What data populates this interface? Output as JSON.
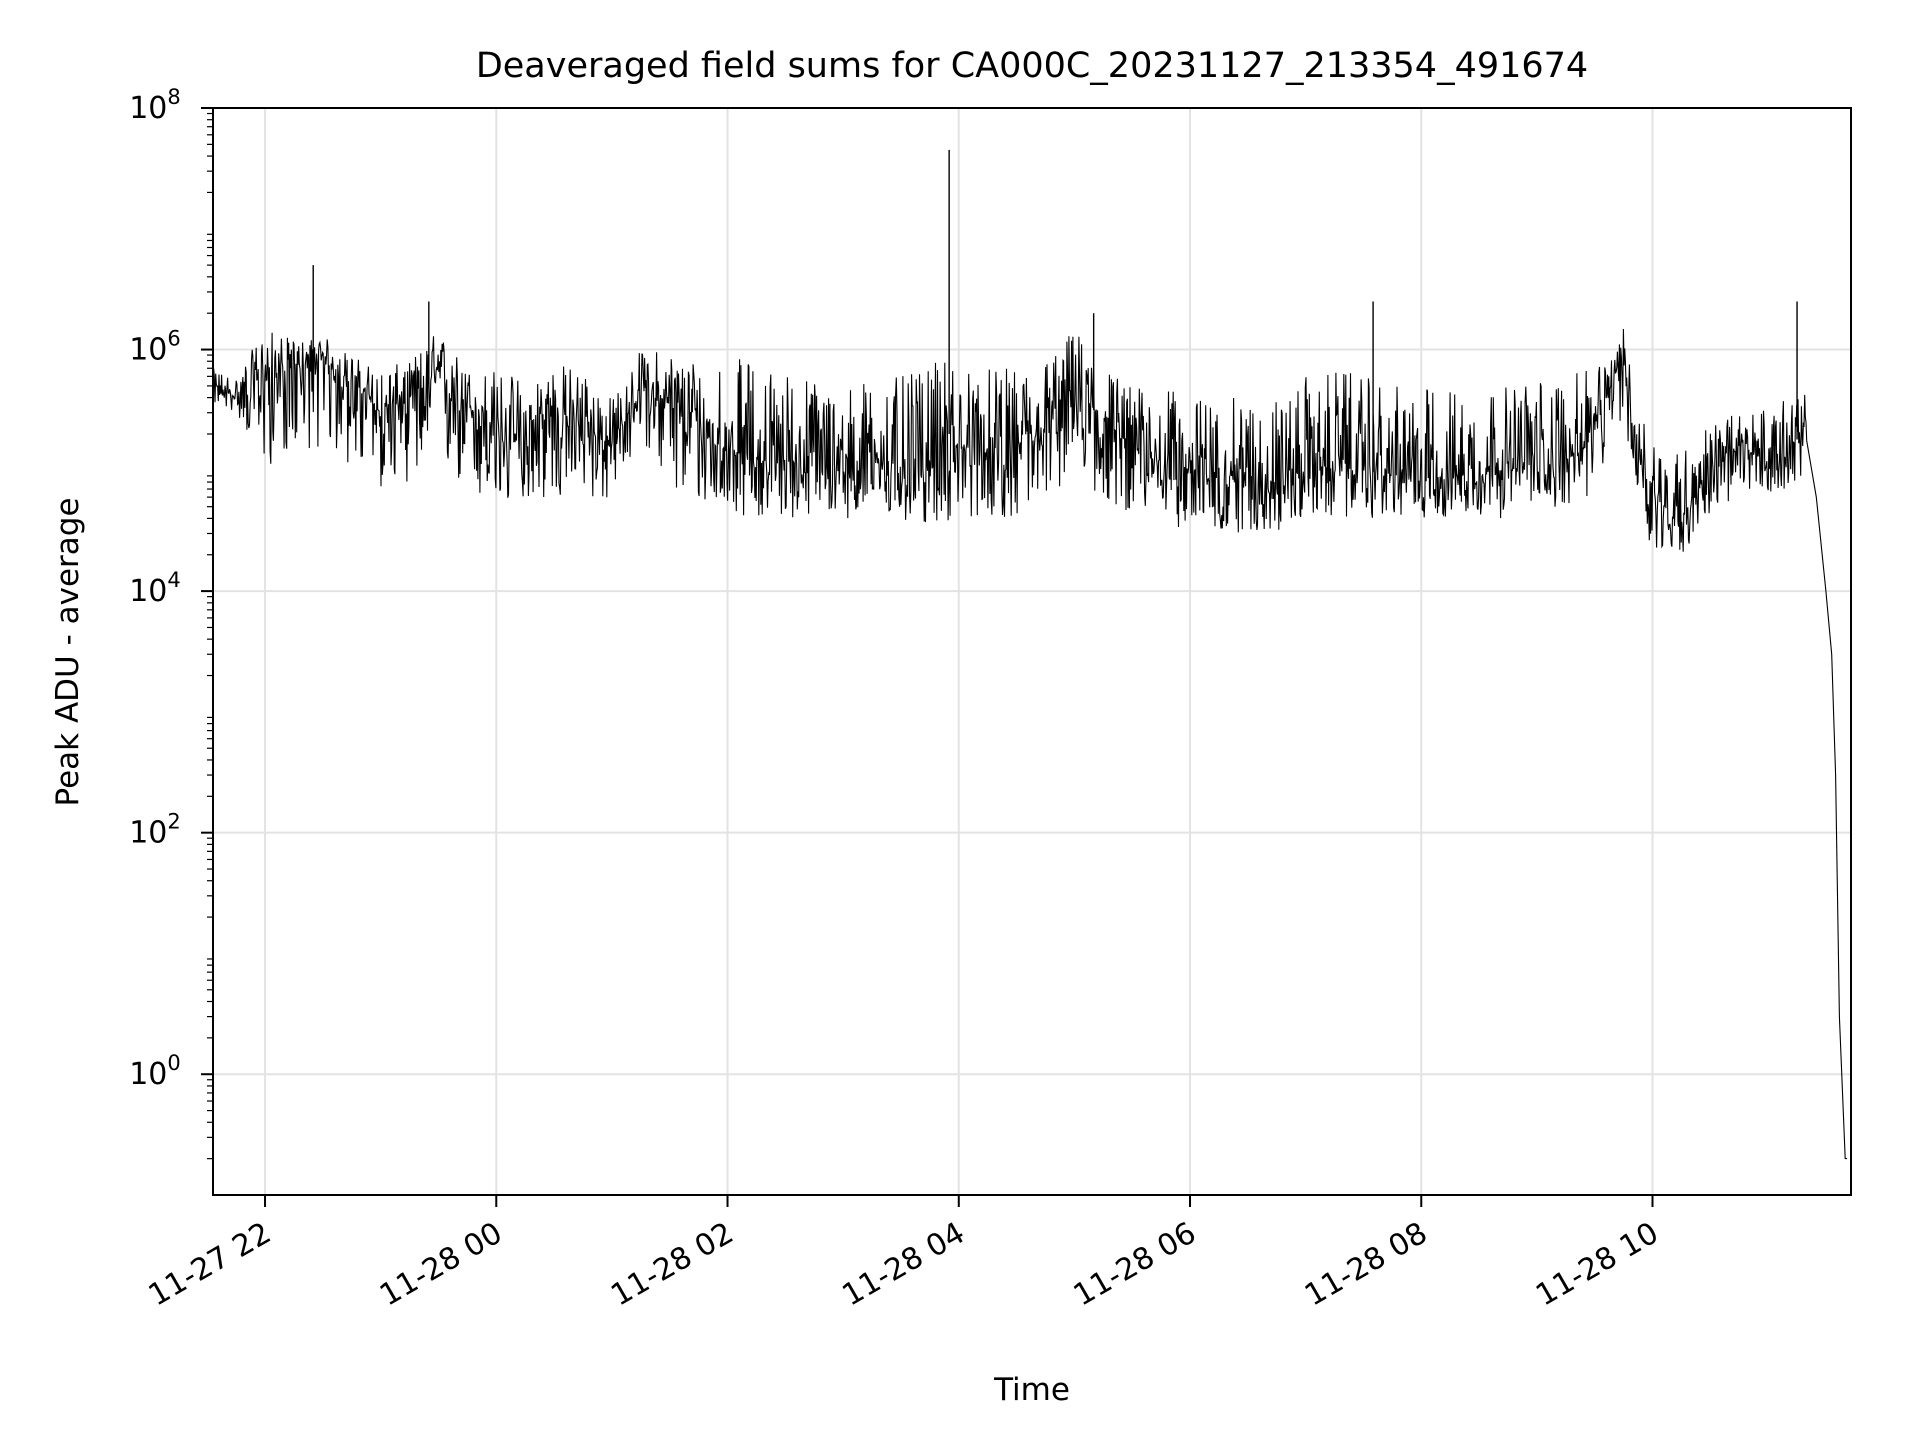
{
  "chart_data": {
    "type": "line",
    "title": "Deaveraged field sums for CA000C_20231127_213354_491674",
    "xlabel": "Time",
    "ylabel": "Peak ADU - average",
    "yscale": "log",
    "ylim": [
      0.1,
      100000000
    ],
    "xlim": [
      "2023-11-27 21:33",
      "2023-11-28 11:43"
    ],
    "grid": true,
    "legend": "none",
    "line_color": "#000000",
    "x_ticks": [
      {
        "t": "2023-11-27 22:00",
        "label": "11-27 22"
      },
      {
        "t": "2023-11-28 00:00",
        "label": "11-28 00"
      },
      {
        "t": "2023-11-28 02:00",
        "label": "11-28 02"
      },
      {
        "t": "2023-11-28 04:00",
        "label": "11-28 04"
      },
      {
        "t": "2023-11-28 06:00",
        "label": "11-28 06"
      },
      {
        "t": "2023-11-28 08:00",
        "label": "11-28 08"
      },
      {
        "t": "2023-11-28 10:00",
        "label": "11-28 10"
      }
    ],
    "y_ticks": [
      {
        "value": 1,
        "base": "10",
        "exp": "0"
      },
      {
        "value": 100,
        "base": "10",
        "exp": "2"
      },
      {
        "value": 10000,
        "base": "10",
        "exp": "4"
      },
      {
        "value": 1000000,
        "base": "10",
        "exp": "6"
      },
      {
        "value": 100000000,
        "base": "10",
        "exp": "8"
      }
    ],
    "series": [
      {
        "x": [
          "2023-11-27 21:33",
          "2023-11-27 21:45",
          "2023-11-27 22:00",
          "2023-11-27 22:15",
          "2023-11-27 22:30",
          "2023-11-27 22:45",
          "2023-11-27 23:00",
          "2023-11-27 23:15",
          "2023-11-27 23:30",
          "2023-11-27 23:45",
          "2023-11-28 00:00",
          "2023-11-28 00:15",
          "2023-11-28 00:30",
          "2023-11-28 00:45",
          "2023-11-28 01:00",
          "2023-11-28 01:15",
          "2023-11-28 01:30",
          "2023-11-28 01:45",
          "2023-11-28 02:00",
          "2023-11-28 02:15",
          "2023-11-28 02:30",
          "2023-11-28 02:45",
          "2023-11-28 03:00",
          "2023-11-28 03:15",
          "2023-11-28 03:30",
          "2023-11-28 03:45",
          "2023-11-28 03:55",
          "2023-11-28 04:00",
          "2023-11-28 04:15",
          "2023-11-28 04:30",
          "2023-11-28 04:45",
          "2023-11-28 05:00",
          "2023-11-28 05:15",
          "2023-11-28 05:30",
          "2023-11-28 05:45",
          "2023-11-28 06:00",
          "2023-11-28 06:15",
          "2023-11-28 06:30",
          "2023-11-28 06:45",
          "2023-11-28 07:00",
          "2023-11-28 07:15",
          "2023-11-28 07:30",
          "2023-11-28 07:45",
          "2023-11-28 08:00",
          "2023-11-28 08:15",
          "2023-11-28 08:30",
          "2023-11-28 08:45",
          "2023-11-28 09:00",
          "2023-11-28 09:15",
          "2023-11-28 09:30",
          "2023-11-28 09:45",
          "2023-11-28 09:50",
          "2023-11-28 10:00",
          "2023-11-28 10:15",
          "2023-11-28 10:30",
          "2023-11-28 10:45",
          "2023-11-28 11:00",
          "2023-11-28 11:15",
          "2023-11-28 11:20",
          "2023-11-28 11:25",
          "2023-11-28 11:30",
          "2023-11-28 11:33",
          "2023-11-28 11:35",
          "2023-11-28 11:37",
          "2023-11-28 11:40",
          "2023-11-28 11:41"
        ],
        "y": [
          500000,
          400000,
          600000,
          700000,
          800000,
          550000,
          300000,
          400000,
          600000,
          350000,
          200000,
          150000,
          300000,
          250000,
          150000,
          500000,
          350000,
          200000,
          150000,
          120000,
          120000,
          110000,
          110000,
          120000,
          110000,
          100000,
          200000,
          150000,
          140000,
          130000,
          200000,
          500000,
          250000,
          150000,
          120000,
          100000,
          90000,
          90000,
          80000,
          100000,
          110000,
          100000,
          90000,
          90000,
          90000,
          100000,
          100000,
          110000,
          120000,
          200000,
          1000000,
          200000,
          60000,
          40000,
          100000,
          150000,
          120000,
          180000,
          250000,
          60000,
          10000,
          3000,
          300,
          3,
          0.2,
          0.2
        ],
        "spikes": [
          {
            "x": "2023-11-27 22:25",
            "y": 5000000
          },
          {
            "x": "2023-11-27 23:25",
            "y": 2500000
          },
          {
            "x": "2023-11-28 03:55",
            "y": 45000000
          },
          {
            "x": "2023-11-28 05:10",
            "y": 2000000
          },
          {
            "x": "2023-11-28 07:35",
            "y": 2500000
          },
          {
            "x": "2023-11-28 11:15",
            "y": 2500000
          }
        ],
        "noise_envelope": {
          "low": [
            350000,
            300000,
            100000,
            150000,
            150000,
            100000,
            70000,
            80000,
            100000,
            60000,
            40000,
            60000,
            50000,
            60000,
            50000,
            200000,
            60000,
            50000,
            45000,
            40000,
            40000,
            40000,
            40000,
            40000,
            35000,
            35000,
            35000,
            40000,
            40000,
            40000,
            50000,
            100000,
            50000,
            45000,
            40000,
            30000,
            30000,
            30000,
            30000,
            40000,
            40000,
            40000,
            40000,
            40000,
            40000,
            40000,
            40000,
            45000,
            50000,
            60000,
            300000,
            60000,
            20000,
            20000,
            40000,
            60000,
            60000,
            80000,
            100000
          ],
          "high": [
            700000,
            600000,
            1500000,
            1200000,
            1300000,
            900000,
            700000,
            800000,
            1500000,
            700000,
            700000,
            600000,
            800000,
            700000,
            400000,
            1000000,
            1000000,
            900000,
            900000,
            800000,
            700000,
            600000,
            500000,
            600000,
            600000,
            700000,
            1000000,
            700000,
            700000,
            700000,
            900000,
            1500000,
            800000,
            500000,
            500000,
            400000,
            400000,
            400000,
            400000,
            600000,
            700000,
            600000,
            500000,
            500000,
            500000,
            500000,
            500000,
            600000,
            600000,
            700000,
            1500000,
            700000,
            200000,
            150000,
            250000,
            300000,
            350000,
            400000,
            450000
          ]
        }
      }
    ]
  }
}
